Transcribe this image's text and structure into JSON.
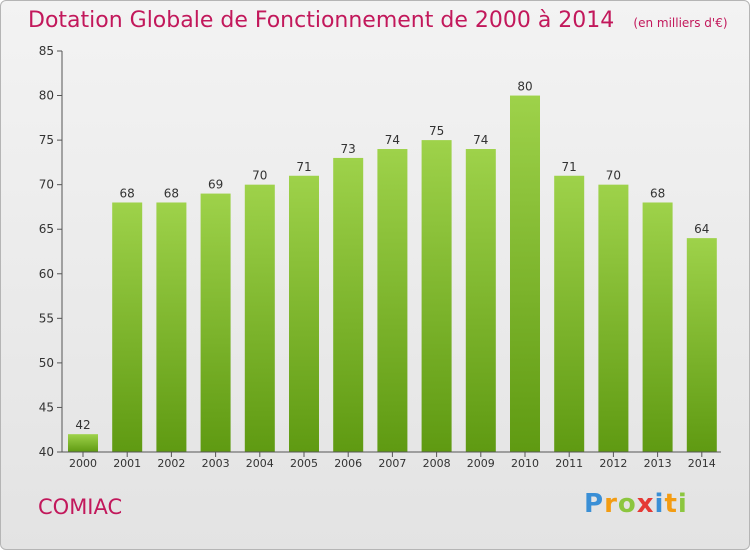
{
  "chart_data": {
    "type": "bar",
    "title": "Dotation Globale de Fonctionnement de 2000 à 2014",
    "unit": "(en milliers d'€)",
    "categories": [
      "2000",
      "2001",
      "2002",
      "2003",
      "2004",
      "2005",
      "2006",
      "2007",
      "2008",
      "2009",
      "2010",
      "2011",
      "2012",
      "2013",
      "2014"
    ],
    "values": [
      42,
      68,
      68,
      69,
      70,
      71,
      73,
      74,
      75,
      74,
      80,
      71,
      70,
      68,
      64
    ],
    "ylim": [
      40,
      85
    ],
    "yticks": [
      40,
      45,
      50,
      55,
      60,
      65,
      70,
      75,
      80,
      85
    ],
    "grid": false,
    "bar_color": "#7db928"
  },
  "footer": {
    "commune": "COMIAC",
    "logo_letters": [
      "P",
      "r",
      "o",
      "x",
      "i",
      "t",
      "i"
    ],
    "logo_colors": [
      "#3a8fd6",
      "#f39c12",
      "#8cc63f",
      "#e53935",
      "#3a8fd6",
      "#f39c12",
      "#8cc63f"
    ]
  }
}
